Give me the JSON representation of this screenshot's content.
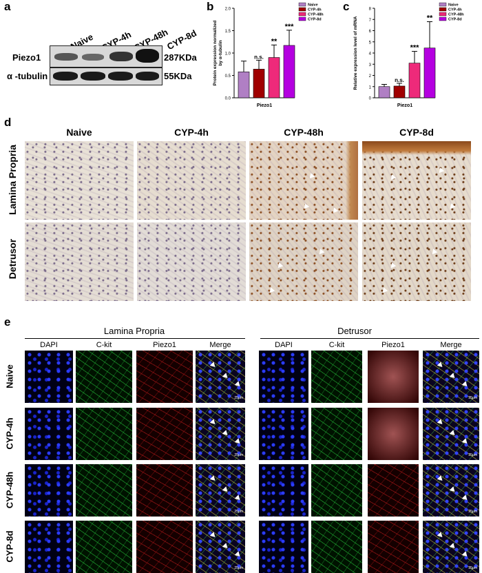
{
  "panel_a": {
    "letter": "a",
    "groups": [
      "Naive",
      "CYP-4h",
      "CYP-48h",
      "CYP-8d"
    ],
    "rows": [
      {
        "label": "Piezo1",
        "size": "287KDa"
      },
      {
        "label": "α -tubulin",
        "size": "55KDa"
      }
    ]
  },
  "panel_d": {
    "letter": "d",
    "columns": [
      "Naive",
      "CYP-4h",
      "CYP-48h",
      "CYP-8d"
    ],
    "rows": [
      "Lamina Propria",
      "Detrusor"
    ]
  },
  "panel_e": {
    "letter": "e",
    "section_left": "Lamina Propria",
    "section_right": "Detrusor",
    "channels": [
      "DAPI",
      "C-kit",
      "Piezo1",
      "Merge"
    ],
    "rows": [
      "Naive",
      "CYP-4h",
      "CYP-48h",
      "CYP-8d"
    ],
    "scale": "25μm"
  },
  "chart_data": [
    {
      "panel": "b",
      "type": "bar",
      "categories": [
        "Naive",
        "CYP-4h",
        "CYP-48h",
        "CYP-8d"
      ],
      "values": [
        0.58,
        0.64,
        0.9,
        1.17
      ],
      "errors": [
        0.24,
        0.2,
        0.28,
        0.34
      ],
      "colors": [
        "#b07fc4",
        "#a00000",
        "#ee2a7a",
        "#b400e0"
      ],
      "significance": [
        "",
        "n.s.",
        "**",
        "***"
      ],
      "legend": [
        "Naive",
        "CYP-4h",
        "CYP-48h",
        "CYP-8d"
      ],
      "xlabel": "Piezo1",
      "ylabel": "Protein expression normalized by α-tubulin",
      "ylim": [
        0,
        2.0
      ],
      "yticks": [
        "0.0",
        "0.5",
        "1.0",
        "1.5",
        "2.0"
      ]
    },
    {
      "panel": "c",
      "type": "bar",
      "categories": [
        "Naive",
        "CYP-4h",
        "CYP-48h",
        "CYP-8d"
      ],
      "values": [
        1.0,
        1.05,
        3.1,
        4.45
      ],
      "errors": [
        0.2,
        0.25,
        1.05,
        2.35
      ],
      "colors": [
        "#b07fc4",
        "#a00000",
        "#ee2a7a",
        "#b400e0"
      ],
      "significance": [
        "",
        "n.s.",
        "***",
        "**"
      ],
      "legend": [
        "Naive",
        "CYP-4h",
        "CYP-48h",
        "CYP-8d"
      ],
      "xlabel": "Piezo1",
      "ylabel": "Relative expression level of mRNA",
      "ylim": [
        0,
        8
      ],
      "yticks": [
        "0",
        "1",
        "2",
        "3",
        "4",
        "5",
        "6",
        "7",
        "8"
      ]
    }
  ]
}
